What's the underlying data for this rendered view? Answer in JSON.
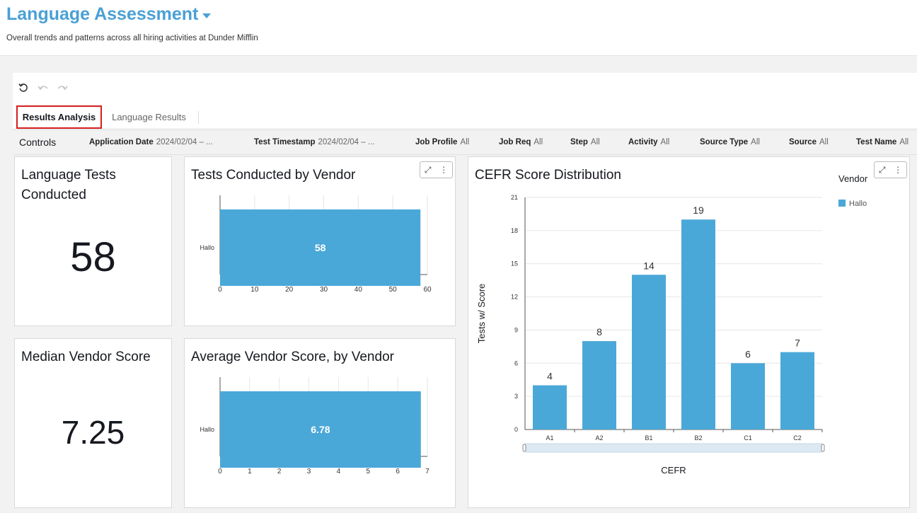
{
  "header": {
    "title": "Language Assessment",
    "subtitle": "Overall trends and patterns across all hiring activities at Dunder Mifflin"
  },
  "toolbar": {
    "icons": [
      "reset-icon",
      "undo-icon",
      "redo-icon"
    ]
  },
  "tabs": [
    {
      "label": "Results Analysis",
      "active": true
    },
    {
      "label": "Language Results",
      "active": false
    }
  ],
  "controls": {
    "label": "Controls",
    "filters": [
      {
        "name": "Application Date",
        "value": "2024/02/04 – ..."
      },
      {
        "name": "Test Timestamp",
        "value": "2024/02/04 – ..."
      },
      {
        "name": "Job Profile",
        "value": "All"
      },
      {
        "name": "Job Req",
        "value": "All"
      },
      {
        "name": "Step",
        "value": "All"
      },
      {
        "name": "Activity",
        "value": "All"
      },
      {
        "name": "Source Type",
        "value": "All"
      },
      {
        "name": "Source",
        "value": "All"
      },
      {
        "name": "Test Name",
        "value": "All"
      }
    ]
  },
  "cards": {
    "tests_conducted": {
      "title": "Language Tests Conducted",
      "value": "58"
    },
    "median_score": {
      "title": "Median Vendor Score",
      "value": "7.25"
    },
    "tests_by_vendor": {
      "title": "Tests Conducted by Vendor"
    },
    "avg_score_by_vendor": {
      "title": "Average Vendor Score, by Vendor"
    },
    "cefr_distribution": {
      "title": "CEFR Score Distribution"
    }
  },
  "chart_data": [
    {
      "type": "bar",
      "orientation": "horizontal",
      "title": "Tests Conducted by Vendor",
      "categories": [
        "Hallo"
      ],
      "values": [
        58
      ],
      "data_labels": [
        "58"
      ],
      "xlim": [
        0,
        60
      ],
      "xticks": [
        "0",
        "10",
        "20",
        "30",
        "40",
        "50",
        "60"
      ],
      "color": "#4aa8d8"
    },
    {
      "type": "bar",
      "orientation": "horizontal",
      "title": "Average Vendor Score, by Vendor",
      "categories": [
        "Hallo"
      ],
      "values": [
        6.78
      ],
      "data_labels": [
        "6.78"
      ],
      "xlim": [
        0,
        7
      ],
      "xticks": [
        "0",
        "1",
        "2",
        "3",
        "4",
        "5",
        "6",
        "7"
      ],
      "color": "#4aa8d8"
    },
    {
      "type": "bar",
      "title": "CEFR Score Distribution",
      "xlabel": "CEFR",
      "ylabel": "Tests w/ Score",
      "categories": [
        "A1",
        "A2",
        "B1",
        "B2",
        "C1",
        "C2"
      ],
      "series": [
        {
          "name": "Hallo",
          "values": [
            4,
            8,
            14,
            19,
            6,
            7
          ]
        }
      ],
      "data_labels": [
        "4",
        "8",
        "14",
        "19",
        "6",
        "7"
      ],
      "ylim": [
        0,
        21
      ],
      "yticks": [
        "0",
        "3",
        "6",
        "9",
        "12",
        "15",
        "18",
        "21"
      ],
      "legend": {
        "title": "Vendor",
        "position": "right"
      },
      "grid": true,
      "color": "#4aa8d8"
    }
  ]
}
